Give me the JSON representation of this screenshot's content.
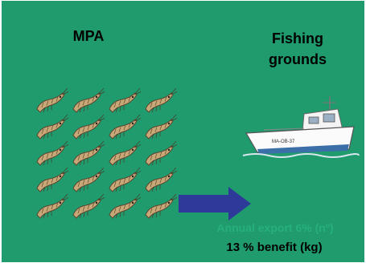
{
  "labels": {
    "mpa": "MPA",
    "fishing_grounds": "Fishing grounds",
    "annual_export": "Annual export 6% (nº)",
    "benefit": "13 % benefit (kg)"
  },
  "boat": {
    "hull_text": "MA-OB-37"
  },
  "icons": {
    "shrimp": "shrimp-icon",
    "arrow": "arrow-right-icon",
    "boat": "fishing-boat-icon"
  },
  "grid": {
    "rows": 5,
    "cols": 4
  },
  "colors": {
    "background": "#1f9b6e",
    "arrow": "#2e3a97",
    "export_text": "#27b07e",
    "text": "#000000"
  }
}
